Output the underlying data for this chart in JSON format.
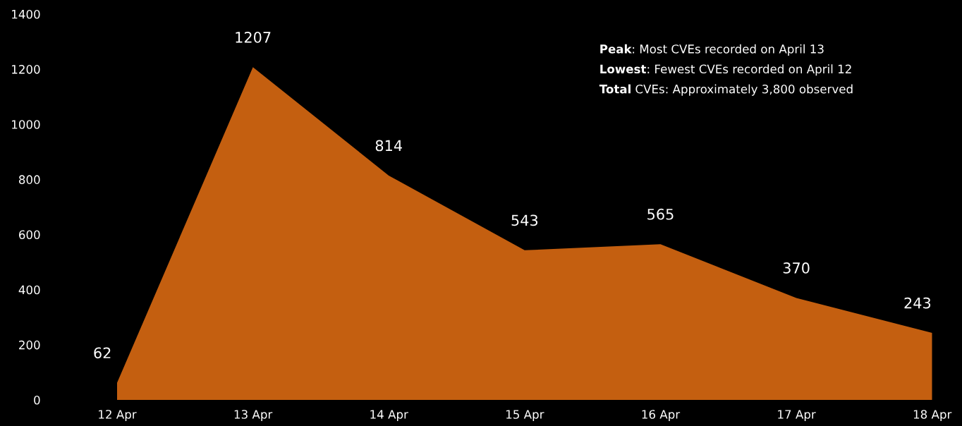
{
  "chart_data": {
    "type": "area",
    "categories": [
      "12 Apr",
      "13 Apr",
      "14 Apr",
      "15 Apr",
      "16 Apr",
      "17 Apr",
      "18 Apr"
    ],
    "series": [
      {
        "color": "#c45f10",
        "values": [
          62,
          1207,
          814,
          543,
          565,
          370,
          243
        ]
      }
    ],
    "ylim": [
      0,
      1400
    ],
    "yticks": [
      0,
      200,
      400,
      600,
      800,
      1000,
      1200,
      1400
    ],
    "data_labels": true,
    "grid": false,
    "legend": false,
    "annotations": [
      "Peak: Most CVEs recorded on April 13",
      "Lowest: Fewest CVEs recorded on April 12",
      "Total CVEs: Approximately 3,800 observed"
    ]
  }
}
